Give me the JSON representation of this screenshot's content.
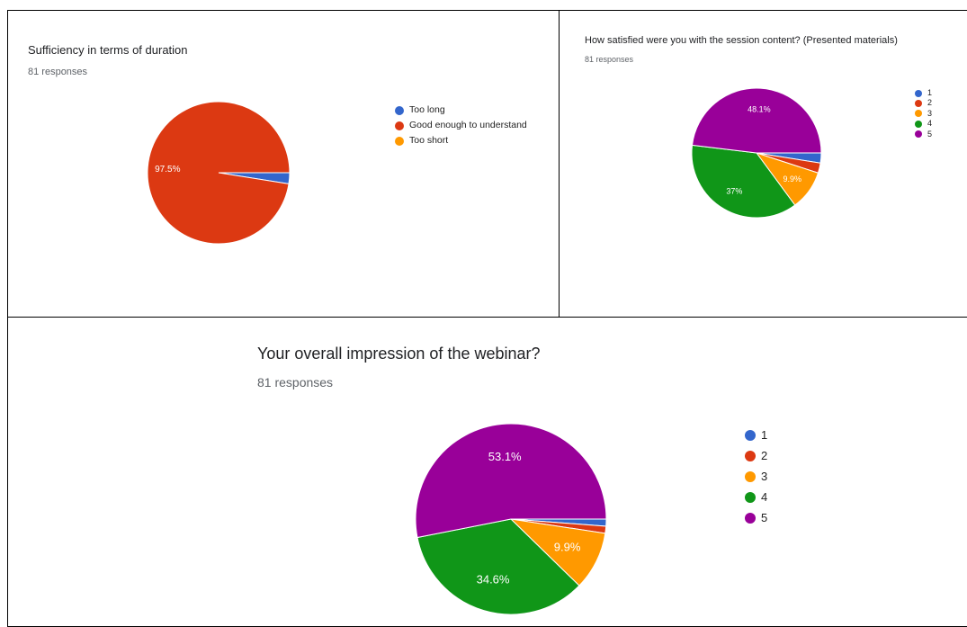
{
  "chart_data": [
    {
      "type": "pie",
      "title": "Sufficiency in terms of duration",
      "subtitle": "81 responses",
      "legend_position": "right",
      "series": [
        {
          "name": "Too long",
          "value": 2.5,
          "color": "#3366cc"
        },
        {
          "name": "Good enough to understand",
          "value": 97.5,
          "color": "#dc3912",
          "label": "97.5%"
        },
        {
          "name": "Too short",
          "value": 0,
          "color": "#ff9900"
        }
      ]
    },
    {
      "type": "pie",
      "title": "How satisfied were you with the session content? (Presented materials)",
      "subtitle": "81 responses",
      "legend_position": "right",
      "series": [
        {
          "name": "1",
          "value": 2.5,
          "color": "#3366cc"
        },
        {
          "name": "2",
          "value": 2.5,
          "color": "#dc3912"
        },
        {
          "name": "3",
          "value": 9.9,
          "color": "#ff9900",
          "label": "9.9%"
        },
        {
          "name": "4",
          "value": 37,
          "color": "#109618",
          "label": "37%"
        },
        {
          "name": "5",
          "value": 48.1,
          "color": "#990099",
          "label": "48.1%"
        }
      ]
    },
    {
      "type": "pie",
      "title": "Your overall impression of the webinar?",
      "subtitle": "81 responses",
      "legend_position": "right",
      "series": [
        {
          "name": "1",
          "value": 1.2,
          "color": "#3366cc"
        },
        {
          "name": "2",
          "value": 1.2,
          "color": "#dc3912"
        },
        {
          "name": "3",
          "value": 9.9,
          "color": "#ff9900",
          "label": "9.9%"
        },
        {
          "name": "4",
          "value": 34.6,
          "color": "#109618",
          "label": "34.6%"
        },
        {
          "name": "5",
          "value": 53.1,
          "color": "#990099",
          "label": "53.1%"
        }
      ]
    }
  ]
}
